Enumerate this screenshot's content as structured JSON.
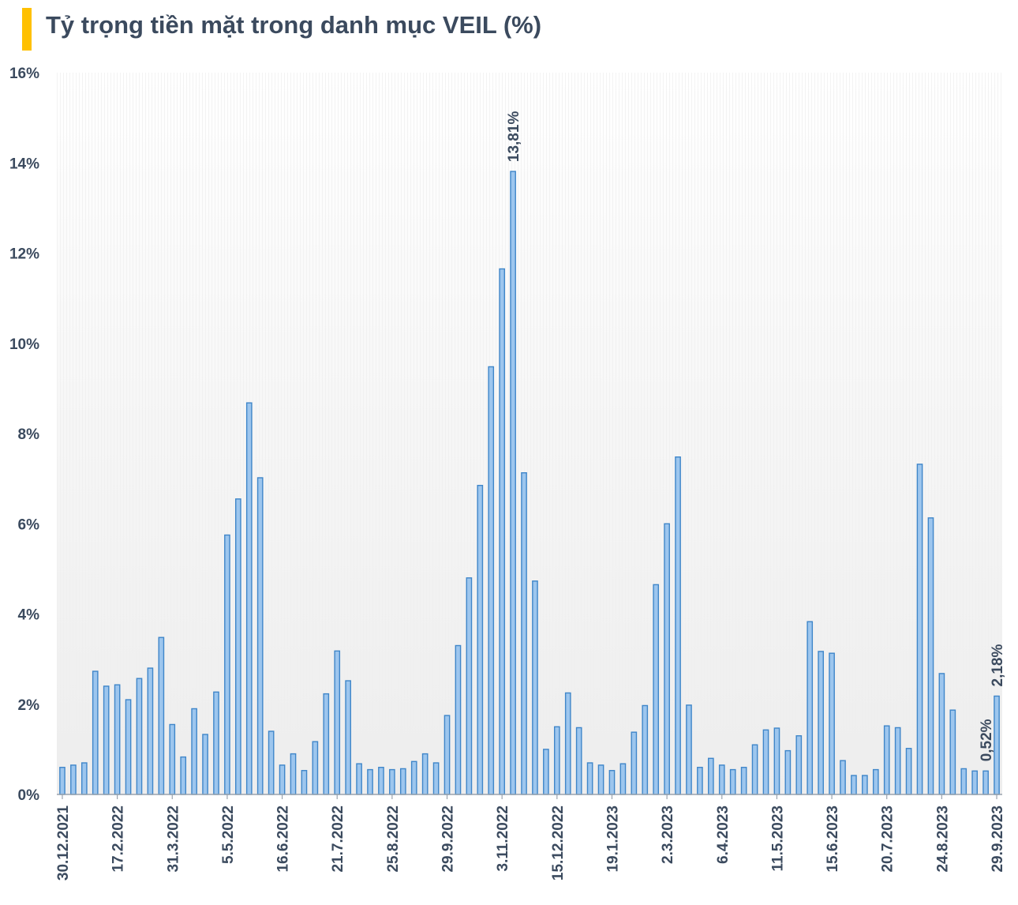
{
  "colors": {
    "accent_bar": "#ffc000",
    "bar_fill": "#9dc6ee",
    "bar_stroke": "#3f86c9",
    "text": "#3b4a5e",
    "axis": "#9aa3ad"
  },
  "chart_data": {
    "type": "bar",
    "title": "Tỷ trọng tiền mặt trong danh mục VEIL (%)",
    "xlabel": "",
    "ylabel": "",
    "ylim": [
      0,
      16
    ],
    "yticks": [
      0,
      2,
      4,
      6,
      8,
      10,
      12,
      14,
      16
    ],
    "ytick_labels": [
      "0%",
      "2%",
      "4%",
      "6%",
      "8%",
      "10%",
      "12%",
      "14%",
      "16%"
    ],
    "grid": false,
    "legend": "none",
    "categories": [
      "30.12.2021",
      "",
      "",
      "",
      "",
      "17.2.2022",
      "",
      "",
      "",
      "",
      "31.3.2022",
      "",
      "",
      "",
      "",
      "5.5.2022",
      "",
      "",
      "",
      "",
      "16.6.2022",
      "",
      "",
      "",
      "",
      "21.7.2022",
      "",
      "",
      "",
      "",
      "25.8.2022",
      "",
      "",
      "",
      "",
      "29.9.2022",
      "",
      "",
      "",
      "",
      "3.11.2022",
      "",
      "",
      "",
      "",
      "15.12.2022",
      "",
      "",
      "",
      "",
      "19.1.2023",
      "",
      "",
      "",
      "",
      "2.3.2023",
      "",
      "",
      "",
      "",
      "6.4.2023",
      "",
      "",
      "",
      "",
      "11.5.2023",
      "",
      "",
      "",
      "",
      "15.6.2023",
      "",
      "",
      "",
      "",
      "20.7.2023",
      "",
      "",
      "",
      "",
      "24.8.2023",
      "",
      "",
      "",
      "",
      "29.9.2023"
    ],
    "values": [
      0.6,
      0.65,
      0.7,
      2.73,
      2.4,
      2.43,
      2.1,
      2.57,
      2.8,
      3.48,
      1.55,
      0.83,
      1.9,
      1.33,
      2.27,
      5.75,
      6.55,
      8.68,
      7.02,
      1.4,
      0.65,
      0.9,
      0.53,
      1.17,
      2.23,
      3.18,
      2.52,
      0.68,
      0.55,
      0.6,
      0.55,
      0.57,
      0.73,
      0.9,
      0.7,
      1.75,
      3.3,
      4.8,
      6.85,
      9.48,
      11.65,
      13.81,
      7.13,
      4.73,
      1.0,
      1.5,
      2.25,
      1.48,
      0.7,
      0.65,
      0.53,
      0.68,
      1.38,
      1.97,
      4.65,
      6.0,
      7.48,
      1.98,
      0.6,
      0.8,
      0.65,
      0.55,
      0.6,
      1.1,
      1.43,
      1.47,
      0.97,
      1.3,
      3.83,
      3.17,
      3.13,
      0.75,
      0.42,
      0.42,
      0.55,
      1.52,
      1.48,
      1.02,
      7.32,
      6.13,
      2.68,
      1.87,
      0.57,
      0.52,
      0.52,
      2.18
    ],
    "data_labels": [
      {
        "index": 41,
        "text": "13,81%"
      },
      {
        "index": 84,
        "text": "0,52%"
      },
      {
        "index": 85,
        "text": "2,18%"
      }
    ]
  }
}
